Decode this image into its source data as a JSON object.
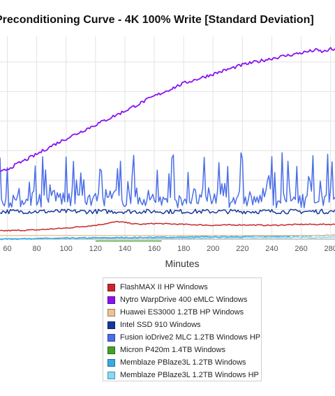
{
  "chart_data": {
    "type": "line",
    "title": "Preconditioning Curve - 4K 100% Write [Standard Deviation]",
    "xlabel": "Minutes",
    "ylabel": "",
    "xlim": [
      55,
      283
    ],
    "ylim": [
      0,
      22
    ],
    "x_ticks": [
      "60",
      "80",
      "100",
      "120",
      "140",
      "160",
      "180",
      "200",
      "220",
      "240",
      "260",
      "280"
    ],
    "grid": true,
    "legend_position": "bottom",
    "series": [
      {
        "name": "FlashMAX II HP Windows",
        "color": "#c8262b",
        "x": [
          55,
          80,
          100,
          120,
          135,
          140,
          150,
          160,
          180,
          200,
          220,
          240,
          260,
          283
        ],
        "values": [
          0.9,
          1.0,
          1.2,
          1.5,
          1.9,
          1.8,
          1.6,
          1.7,
          1.6,
          1.5,
          1.55,
          1.5,
          1.6,
          1.6
        ]
      },
      {
        "name": "Nytro WarpDrive 400 eMLC Windows",
        "color": "#8a12f2",
        "x": [
          55,
          60,
          70,
          80,
          90,
          100,
          120,
          140,
          160,
          180,
          200,
          220,
          240,
          260,
          270,
          275,
          280,
          283
        ],
        "values": [
          7.2,
          7.6,
          8.4,
          9.2,
          10.1,
          10.9,
          12.4,
          13.9,
          15.5,
          16.9,
          17.9,
          18.9,
          19.6,
          20.2,
          20.5,
          20.3,
          20.6,
          20.5
        ]
      },
      {
        "name": "Huawei ES3000 1.2TB HP Windows",
        "color": "#ecc493",
        "x": [
          55,
          283
        ],
        "values": [
          0.4,
          0.4
        ]
      },
      {
        "name": "Intel SSD 910 Windows",
        "color": "#16389b",
        "x": [
          55,
          120,
          200,
          283
        ],
        "values": [
          3.0,
          3.0,
          3.0,
          3.0
        ]
      },
      {
        "name": "Fusion ioDrive2 MLC 1.2TB Windows HP",
        "color": "#4a6ee8",
        "x": [
          55,
          283
        ],
        "values": [
          5.0,
          5.0
        ]
      },
      {
        "name": "Micron P420m 1.4TB Windows",
        "color": "#45a12a",
        "x": [
          120,
          165
        ],
        "values": [
          -0.2,
          -0.2
        ]
      },
      {
        "name": "Memblaze PBlaze3L 1.2TB Windows",
        "color": "#3ba9e4",
        "x": [
          55,
          120,
          200,
          283
        ],
        "values": [
          0.0,
          0.15,
          0.25,
          0.4
        ]
      },
      {
        "name": "Memblaze PBlaze3L 1.2TB Windows HP",
        "color": "#82dcf4",
        "x": [
          55,
          283
        ],
        "values": [
          0.05,
          0.2
        ]
      }
    ]
  }
}
